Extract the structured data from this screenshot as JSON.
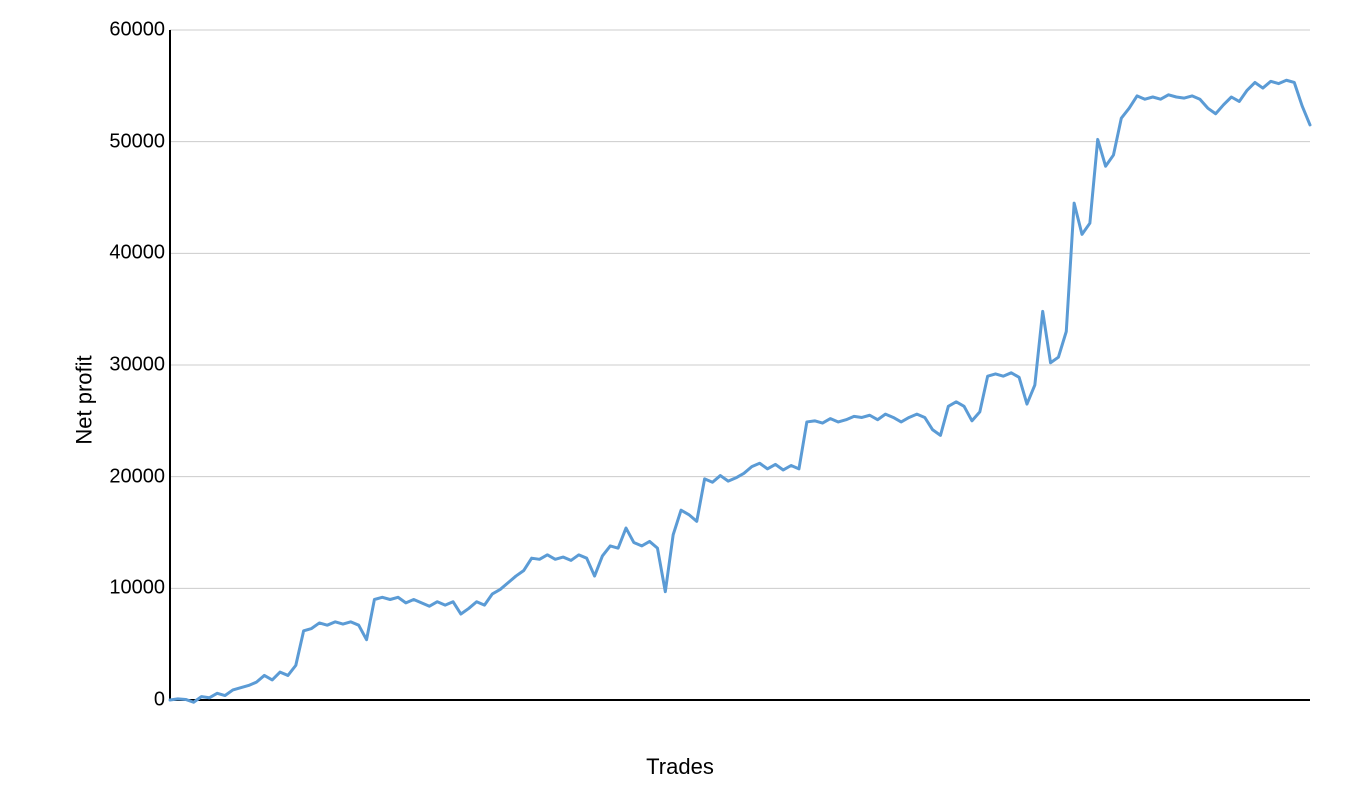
{
  "chart": {
    "type": "line",
    "xlabel": "Trades",
    "ylabel": "Net profit",
    "label_fontsize": 22,
    "tick_fontsize": 20,
    "background_color": "#ffffff",
    "grid_color": "#cccccc",
    "axis_color": "#000000",
    "line_color": "#5b9bd5",
    "line_width": 3,
    "ylim": [
      0,
      60000
    ],
    "yticks": [
      0,
      10000,
      20000,
      30000,
      40000,
      50000,
      60000
    ],
    "xlim": [
      0,
      160
    ],
    "values": [
      0,
      100,
      50,
      -200,
      300,
      200,
      600,
      400,
      900,
      1100,
      1300,
      1600,
      2200,
      1800,
      2500,
      2200,
      3100,
      6200,
      6400,
      6900,
      6700,
      7000,
      6800,
      7000,
      6700,
      5400,
      9000,
      9200,
      9000,
      9200,
      8700,
      9000,
      8700,
      8400,
      8800,
      8500,
      8800,
      7700,
      8200,
      8800,
      8500,
      9500,
      9900,
      10500,
      11100,
      11600,
      12700,
      12600,
      13000,
      12600,
      12800,
      12500,
      13000,
      12700,
      11100,
      12900,
      13800,
      13600,
      15400,
      14100,
      13800,
      14200,
      13600,
      9700,
      14800,
      17000,
      16600,
      16000,
      19800,
      19500,
      20100,
      19600,
      19900,
      20300,
      20900,
      21200,
      20700,
      21100,
      20600,
      21000,
      20700,
      24900,
      25000,
      24800,
      25200,
      24900,
      25100,
      25400,
      25300,
      25500,
      25100,
      25600,
      25300,
      24900,
      25300,
      25600,
      25300,
      24200,
      23700,
      26300,
      26700,
      26300,
      25000,
      25800,
      29000,
      29200,
      29000,
      29300,
      28900,
      26500,
      28200,
      34800,
      30200,
      30700,
      33000,
      44500,
      41700,
      42700,
      50200,
      47800,
      48800,
      52100,
      53000,
      54100,
      53800,
      54000,
      53800,
      54200,
      54000,
      53900,
      54100,
      53800,
      53000,
      52500,
      53300,
      54000,
      53600,
      54600,
      55300,
      54800,
      55400,
      55200,
      55500,
      55300,
      53200,
      51500
    ]
  }
}
